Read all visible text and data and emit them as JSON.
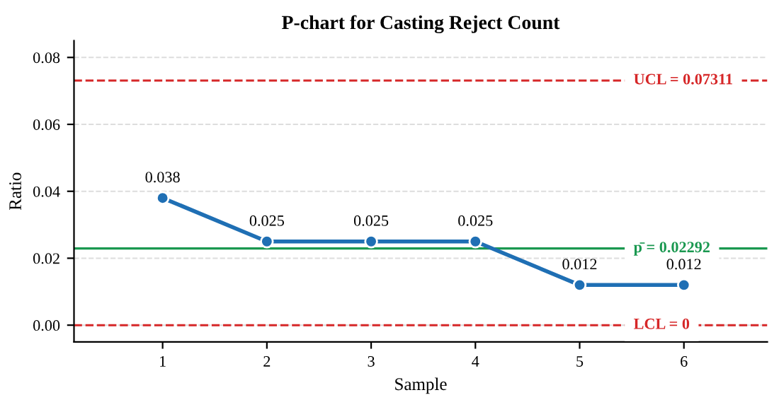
{
  "chart_data": {
    "type": "line",
    "title": "P-chart for Casting Reject Count",
    "xlabel": "Sample",
    "ylabel": "Ratio",
    "x": [
      1,
      2,
      3,
      4,
      5,
      6
    ],
    "series": [
      {
        "color": "#1f6fb4",
        "values": [
          0.038,
          0.025,
          0.025,
          0.025,
          0.012,
          0.012
        ]
      }
    ],
    "data_labels": true,
    "marker": "circle",
    "line_style": "solid",
    "xlim": [
      0.15,
      6.8
    ],
    "xticks": [
      1,
      2,
      3,
      4,
      5,
      6
    ],
    "ylim": [
      -0.005,
      0.085
    ],
    "yticks": [
      {
        "value": 0,
        "label": "0.00"
      },
      {
        "value": 0.02,
        "label": "0.02"
      },
      {
        "value": 0.04,
        "label": "0.04"
      },
      {
        "value": 0.06,
        "label": "0.06"
      },
      {
        "value": 0.08,
        "label": "0.08"
      }
    ],
    "grid": "y",
    "legend": false,
    "ref_lines": [
      {
        "axis": "y",
        "value": 0.07311,
        "label": "UCL = 0.07311",
        "color": "#d62728",
        "line_style": "dashed"
      },
      {
        "axis": "y",
        "value": 0.02292,
        "label": "p̄ = 0.02292",
        "color": "#1a9850",
        "line_style": "solid"
      },
      {
        "axis": "y",
        "value": 0,
        "label": "LCL = 0",
        "color": "#d62728",
        "line_style": "dashed"
      }
    ]
  }
}
